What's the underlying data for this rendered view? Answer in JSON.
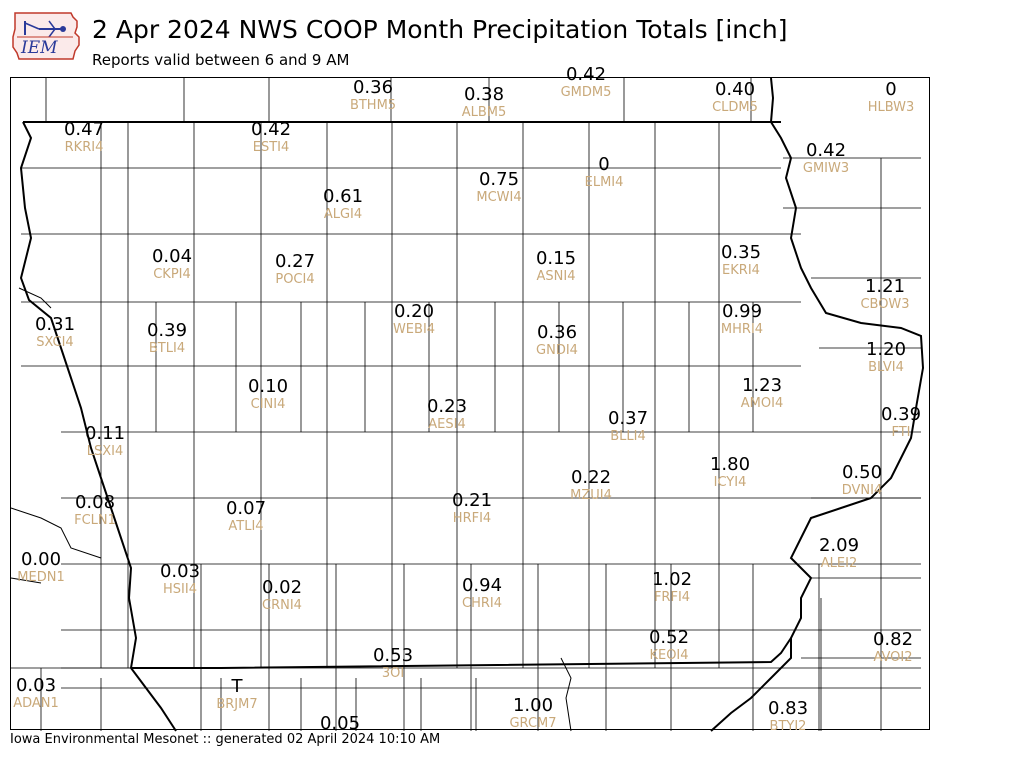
{
  "header": {
    "title": "2 Apr 2024 NWS COOP Month Precipitation Totals [inch]",
    "subtitle": "Reports valid between 6 and 9 AM",
    "logo_text": "IEM"
  },
  "footer": {
    "credit": "Iowa Environmental Mesonet :: generated 02 April 2024 10:10 AM"
  },
  "colors": {
    "value_text": "#000000",
    "station_id_text": "#c9a97a",
    "county_lines": "#000000",
    "logo_red": "#c0392b",
    "logo_blue": "#2a3a9a"
  },
  "stations": [
    {
      "id": "BTHM5",
      "value": "0.36"
    },
    {
      "id": "ALBM5",
      "value": "0.38"
    },
    {
      "id": "GMDM5",
      "value": "0.42"
    },
    {
      "id": "CLDM5",
      "value": "0.40"
    },
    {
      "id": "HLBW3",
      "value": "0"
    },
    {
      "id": "RKRI4",
      "value": "0.47"
    },
    {
      "id": "ESTI4",
      "value": "0.42"
    },
    {
      "id": "ELMI4",
      "value": "0"
    },
    {
      "id": "GMIW3",
      "value": "0.42"
    },
    {
      "id": "MCWI4",
      "value": "0.75"
    },
    {
      "id": "ALGI4",
      "value": "0.61"
    },
    {
      "id": "CKPI4",
      "value": "0.04"
    },
    {
      "id": "POCI4",
      "value": "0.27"
    },
    {
      "id": "ASNI4",
      "value": "0.15"
    },
    {
      "id": "EKRI4",
      "value": "0.35"
    },
    {
      "id": "CBOW3",
      "value": "1.21"
    },
    {
      "id": "SXCI4",
      "value": "0.31"
    },
    {
      "id": "BTLI4",
      "value": "0.39"
    },
    {
      "id": "WEBI4",
      "value": "0.20"
    },
    {
      "id": "GNDI4",
      "value": "0.36"
    },
    {
      "id": "MHRI4",
      "value": "0.99"
    },
    {
      "id": "BLVI4",
      "value": "1.20"
    },
    {
      "id": "CINI4",
      "value": "0.10"
    },
    {
      "id": "AMOI4",
      "value": "1.23"
    },
    {
      "id": "AESI4",
      "value": "0.23"
    },
    {
      "id": "FTI",
      "value": "0.39"
    },
    {
      "id": "LSXI4",
      "value": "0.11"
    },
    {
      "id": "BLLI4",
      "value": "0.37"
    },
    {
      "id": "ICYI4",
      "value": "1.80"
    },
    {
      "id": "DVNI4",
      "value": "0.50"
    },
    {
      "id": "MZUI4",
      "value": "0.22"
    },
    {
      "id": "FCLN1",
      "value": "0.08"
    },
    {
      "id": "ATLI4",
      "value": "0.07"
    },
    {
      "id": "HRFI4",
      "value": "0.21"
    },
    {
      "id": "ALEI2",
      "value": "2.09"
    },
    {
      "id": "MEDN1",
      "value": "0.00"
    },
    {
      "id": "HSII4",
      "value": "0.03"
    },
    {
      "id": "CRNI4",
      "value": "0.02"
    },
    {
      "id": "CHRI4",
      "value": "0.94"
    },
    {
      "id": "FRFI4",
      "value": "1.02"
    },
    {
      "id": "KEOI4",
      "value": "0.52"
    },
    {
      "id": "AVOI2",
      "value": "0.82"
    },
    {
      "id": "3OI",
      "value": "0.53"
    },
    {
      "id": "ADAN1",
      "value": "0.03"
    },
    {
      "id": "BRJM7",
      "value": "T"
    },
    {
      "id": "GRCM7",
      "value": "1.00"
    },
    {
      "id": "BTYI2",
      "value": "0.83"
    },
    {
      "id": "",
      "value": "0.05"
    }
  ]
}
